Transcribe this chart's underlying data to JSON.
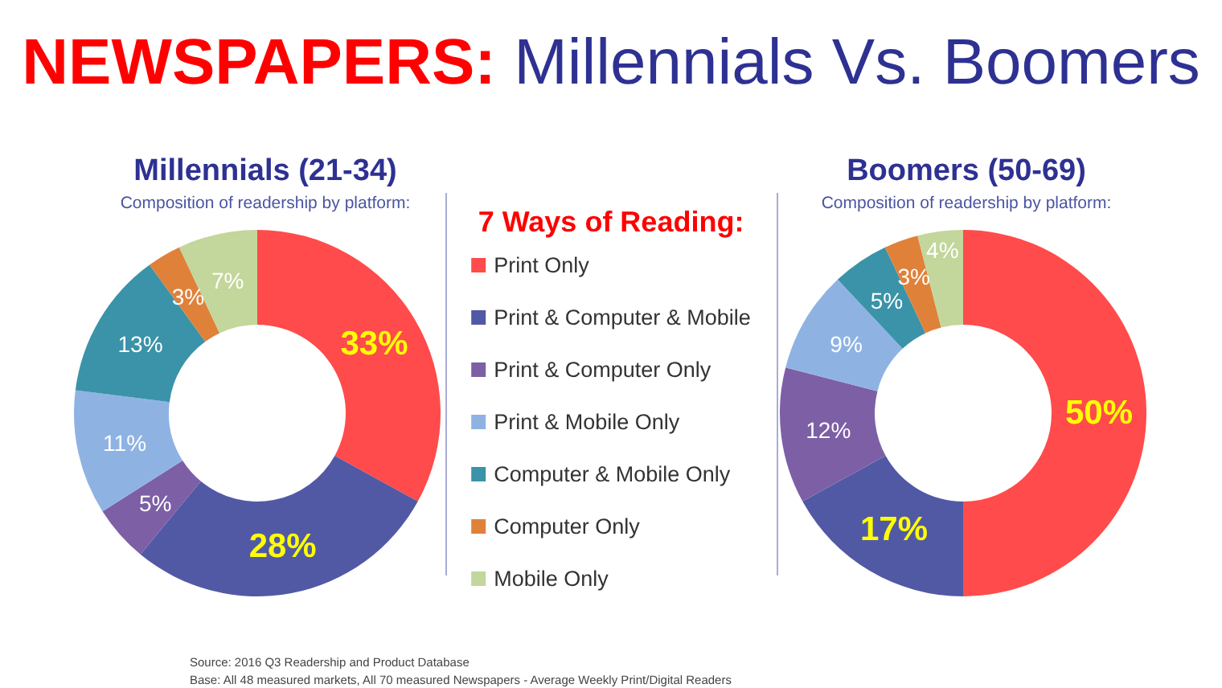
{
  "chart_data": {
    "type": "donut",
    "title": "NEWSPAPERS: Millennials Vs. Boomers",
    "subtitle": "Composition of readership by platform:",
    "legend_title": "7 Ways of Reading:",
    "legend": "center",
    "categories": [
      "Print Only",
      "Print & Computer & Mobile",
      "Print & Computer Only",
      "Print & Mobile Only",
      "Computer & Mobile Only",
      "Computer Only",
      "Mobile Only"
    ],
    "colors": [
      "#ff4b4b",
      "#5159a5",
      "#7d5fa6",
      "#8eb3e3",
      "#3a93a8",
      "#e0813a",
      "#c3d69b"
    ],
    "series": [
      {
        "name": "Millennials (21-34)",
        "values": [
          33,
          28,
          5,
          11,
          13,
          3,
          7
        ],
        "value_labels": [
          "33%",
          "28%",
          "5%",
          "11%",
          "13%",
          "3%",
          "7%"
        ]
      },
      {
        "name": "Boomers (50-69)",
        "values": [
          50,
          17,
          12,
          9,
          5,
          3,
          4
        ],
        "value_labels": [
          "50%",
          "17%",
          "12%",
          "9%",
          "5%",
          "3%",
          "4%"
        ]
      }
    ],
    "annotations": [
      "Source: 2016 Q3 Readership and Product Database",
      "Base: All 48 measured markets, All 70 measured Newspapers - Average Weekly Print/Digital Readers"
    ]
  }
}
